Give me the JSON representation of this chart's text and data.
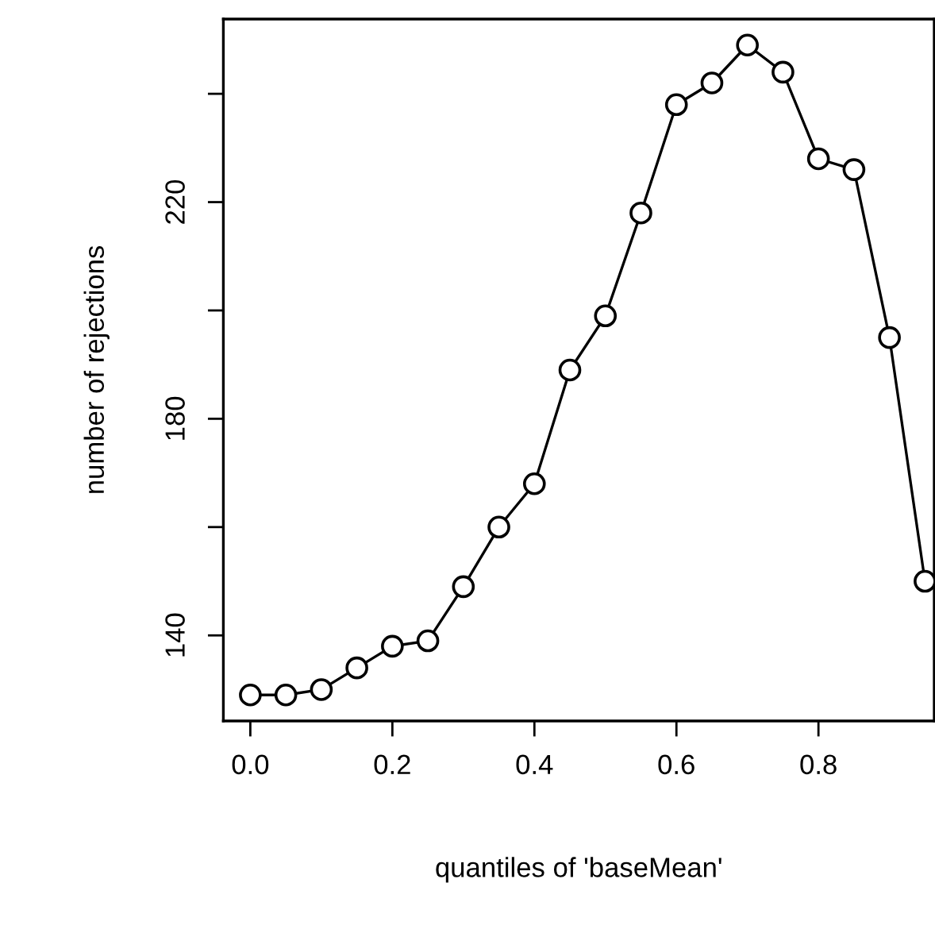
{
  "chart_data": {
    "type": "line",
    "xlabel": "quantiles of 'baseMean'",
    "ylabel": "number of rejections",
    "x": [
      0,
      0.05,
      0.1,
      0.15,
      0.2,
      0.25,
      0.3,
      0.35,
      0.4,
      0.45,
      0.5,
      0.55,
      0.6,
      0.65,
      0.7,
      0.75,
      0.8,
      0.85,
      0.9,
      0.95
    ],
    "series": [
      {
        "color": "#000000",
        "values": [
          129,
          129,
          130,
          134,
          138,
          139,
          149,
          160,
          168,
          189,
          199,
          218,
          238,
          242,
          249,
          244,
          228,
          226,
          195,
          150
        ]
      }
    ],
    "xlim": [
      -0.038,
      0.963
    ],
    "ylim": [
      124.2,
      253.8
    ],
    "xticks": [
      {
        "value": 0,
        "label": "0.0"
      },
      {
        "value": 0.2,
        "label": "0.2"
      },
      {
        "value": 0.4,
        "label": "0.4"
      },
      {
        "value": 0.6,
        "label": "0.6"
      },
      {
        "value": 0.8,
        "label": "0.8"
      }
    ],
    "yticks": [
      140,
      {
        "value": 160,
        "label": null
      },
      180,
      {
        "value": 200,
        "label": null
      },
      220,
      {
        "value": 240,
        "label": null
      }
    ],
    "marker": "circle",
    "line_style": "solid",
    "grid": false,
    "legend": false
  }
}
